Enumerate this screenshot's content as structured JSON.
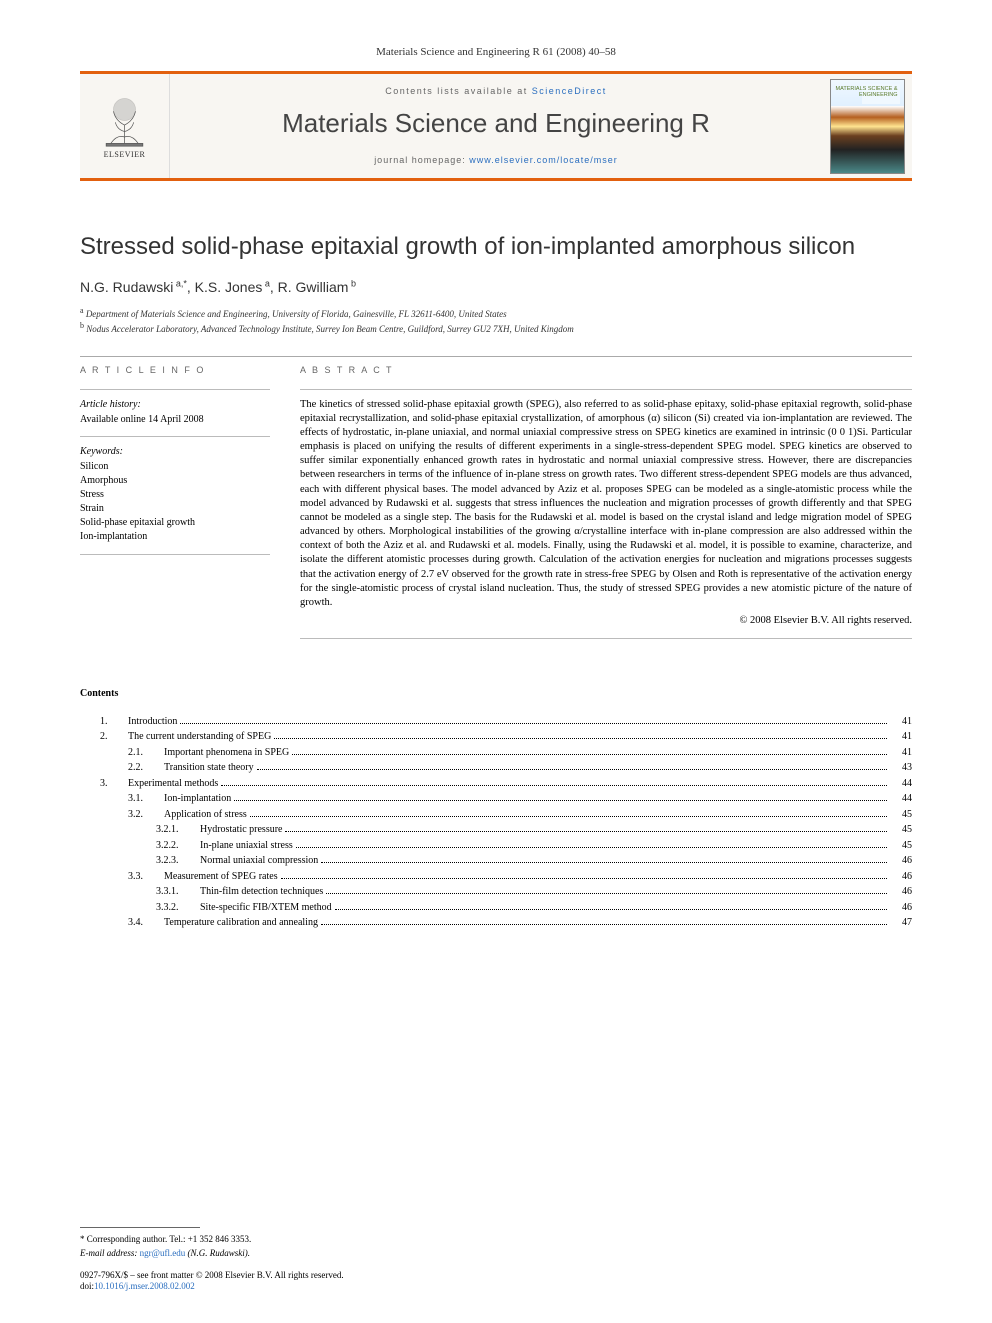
{
  "citation": "Materials Science and Engineering R 61 (2008) 40–58",
  "masthead": {
    "publisher": "ELSEVIER",
    "contents_prefix": "Contents lists available at ",
    "contents_link": "ScienceDirect",
    "journal_name": "Materials Science and Engineering R",
    "homepage_prefix": "journal homepage: ",
    "homepage_url": "www.elsevier.com/locate/mser",
    "cover_text": "MATERIALS\nSCIENCE &\nENGINEERING"
  },
  "article": {
    "title": "Stressed solid-phase epitaxial growth of ion-implanted amorphous silicon",
    "authors_html": "N.G. Rudawski<sup> a,*</sup>, K.S. Jones<sup> a</sup>, R. Gwilliam<sup> b</sup>",
    "affiliations": [
      {
        "sup": "a",
        "text": "Department of Materials Science and Engineering, University of Florida, Gainesville, FL 32611-6400, United States"
      },
      {
        "sup": "b",
        "text": "Nodus Accelerator Laboratory, Advanced Technology Institute, Surrey Ion Beam Centre, Guildford, Surrey GU2 7XH, United Kingdom"
      }
    ]
  },
  "info": {
    "info_header": "A R T I C L E   I N F O",
    "history_label": "Article history:",
    "history_text": "Available online 14 April 2008",
    "keywords_label": "Keywords:",
    "keywords": [
      "Silicon",
      "Amorphous",
      "Stress",
      "Strain",
      "Solid-phase epitaxial growth",
      "Ion-implantation"
    ]
  },
  "abstract": {
    "header": "A B S T R A C T",
    "text": "The kinetics of stressed solid-phase epitaxial growth (SPEG), also referred to as solid-phase epitaxy, solid-phase epitaxial regrowth, solid-phase epitaxial recrystallization, and solid-phase epitaxial crystallization, of amorphous (α) silicon (Si) created via ion-implantation are reviewed. The effects of hydrostatic, in-plane uniaxial, and normal uniaxial compressive stress on SPEG kinetics are examined in intrinsic (0 0 1)Si. Particular emphasis is placed on unifying the results of different experiments in a single-stress-dependent SPEG model. SPEG kinetics are observed to suffer similar exponentially enhanced growth rates in hydrostatic and normal uniaxial compressive stress. However, there are discrepancies between researchers in terms of the influence of in-plane stress on growth rates. Two different stress-dependent SPEG models are thus advanced, each with different physical bases. The model advanced by Aziz et al. proposes SPEG can be modeled as a single-atomistic process while the model advanced by Rudawski et al. suggests that stress influences the nucleation and migration processes of growth differently and that SPEG cannot be modeled as a single step. The basis for the Rudawski et al. model is based on the crystal island and ledge migration model of SPEG advanced by others. Morphological instabilities of the growing α/crystalline interface with in-plane compression are also addressed within the context of both the Aziz et al. and Rudawski et al. models. Finally, using the Rudawski et al. model, it is possible to examine, characterize, and isolate the different atomistic processes during growth. Calculation of the activation energies for nucleation and migrations processes suggests that the activation energy of 2.7 eV observed for the growth rate in stress-free SPEG by Olsen and Roth is representative of the activation energy for the single-atomistic process of crystal island nucleation. Thus, the study of stressed SPEG provides a new atomistic picture of the nature of growth.",
    "copyright": "© 2008 Elsevier B.V. All rights reserved."
  },
  "contents": {
    "header": "Contents",
    "items": [
      {
        "level": 0,
        "num": "1.",
        "title": "Introduction",
        "page": "41"
      },
      {
        "level": 0,
        "num": "2.",
        "title": "The current understanding of SPEG",
        "page": "41"
      },
      {
        "level": 1,
        "num": "2.1.",
        "title": "Important phenomena in SPEG",
        "page": "41"
      },
      {
        "level": 1,
        "num": "2.2.",
        "title": "Transition state theory",
        "page": "43"
      },
      {
        "level": 0,
        "num": "3.",
        "title": "Experimental methods",
        "page": "44"
      },
      {
        "level": 1,
        "num": "3.1.",
        "title": "Ion-implantation",
        "page": "44"
      },
      {
        "level": 1,
        "num": "3.2.",
        "title": "Application of stress",
        "page": "45"
      },
      {
        "level": 2,
        "num": "3.2.1.",
        "title": "Hydrostatic pressure",
        "page": "45"
      },
      {
        "level": 2,
        "num": "3.2.2.",
        "title": "In-plane uniaxial stress",
        "page": "45"
      },
      {
        "level": 2,
        "num": "3.2.3.",
        "title": "Normal uniaxial compression",
        "page": "46"
      },
      {
        "level": 1,
        "num": "3.3.",
        "title": "Measurement of SPEG rates",
        "page": "46"
      },
      {
        "level": 2,
        "num": "3.3.1.",
        "title": "Thin-film detection techniques",
        "page": "46"
      },
      {
        "level": 2,
        "num": "3.3.2.",
        "title": "Site-specific FIB/XTEM method",
        "page": "46"
      },
      {
        "level": 1,
        "num": "3.4.",
        "title": "Temperature calibration and annealing",
        "page": "47"
      }
    ]
  },
  "footer": {
    "corr": "* Corresponding author. Tel.: +1 352 846 3353.",
    "email_label": "E-mail address: ",
    "email": "ngr@ufl.edu",
    "email_suffix": " (N.G. Rudawski).",
    "copyright1": "0927-796X/$ – see front matter © 2008 Elsevier B.V. All rights reserved.",
    "doi_prefix": "doi:",
    "doi": "10.1016/j.mser.2008.02.002"
  }
}
